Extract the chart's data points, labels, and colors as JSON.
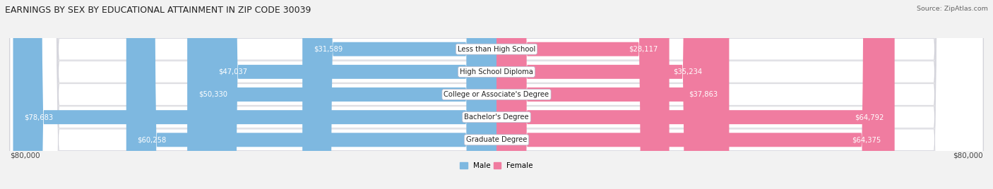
{
  "title": "EARNINGS BY SEX BY EDUCATIONAL ATTAINMENT IN ZIP CODE 30039",
  "source": "Source: ZipAtlas.com",
  "categories": [
    "Less than High School",
    "High School Diploma",
    "College or Associate's Degree",
    "Bachelor's Degree",
    "Graduate Degree"
  ],
  "male_values": [
    31589,
    47037,
    50330,
    78683,
    60258
  ],
  "female_values": [
    28117,
    35234,
    37863,
    64792,
    64375
  ],
  "male_labels": [
    "$31,589",
    "$47,037",
    "$50,330",
    "$78,683",
    "$60,258"
  ],
  "female_labels": [
    "$28,117",
    "$35,234",
    "$37,863",
    "$64,792",
    "$64,375"
  ],
  "male_color": "#7eb8e0",
  "female_color": "#f07ca0",
  "axis_label_left": "$80,000",
  "axis_label_right": "$80,000",
  "max_val": 80000,
  "background_color": "#f2f2f2",
  "row_bg_color": "#e8e8ec",
  "title_fontsize": 9,
  "label_fontsize": 7.5,
  "bar_height": 0.62
}
